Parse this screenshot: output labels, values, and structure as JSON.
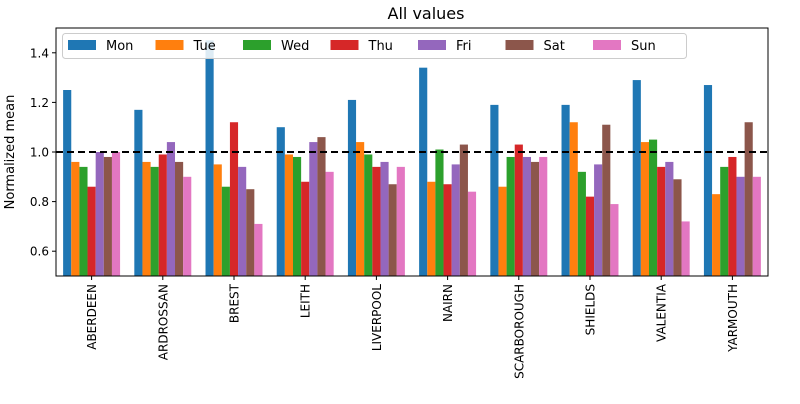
{
  "chart_data": {
    "type": "bar",
    "title": "All values",
    "xlabel": "",
    "ylabel": "Normalized mean",
    "ylim": [
      0.5,
      1.5
    ],
    "yticks": [
      0.6,
      0.8,
      1.0,
      1.2,
      1.4
    ],
    "ytick_labels": [
      "0.6",
      "0.8",
      "1.0",
      "1.2",
      "1.4"
    ],
    "reference_line": 1.0,
    "legend_position": "top",
    "categories": [
      "ABERDEEN",
      "ARDROSSAN",
      "BREST",
      "LEITH",
      "LIVERPOOL",
      "NAIRN",
      "SCARBOROUGH",
      "SHIELDS",
      "VALENTIA",
      "YARMOUTH"
    ],
    "series": [
      {
        "name": "Mon",
        "color": "#1f77b4",
        "values": [
          1.25,
          1.17,
          1.45,
          1.1,
          1.21,
          1.34,
          1.19,
          1.19,
          1.29,
          1.27
        ]
      },
      {
        "name": "Tue",
        "color": "#ff7f0e",
        "values": [
          0.96,
          0.96,
          0.95,
          0.99,
          1.04,
          0.88,
          0.86,
          1.12,
          1.04,
          0.83
        ]
      },
      {
        "name": "Wed",
        "color": "#2ca02c",
        "values": [
          0.94,
          0.94,
          0.86,
          0.98,
          0.99,
          1.01,
          0.98,
          0.92,
          1.05,
          0.94
        ]
      },
      {
        "name": "Thu",
        "color": "#d62728",
        "values": [
          0.86,
          0.99,
          1.12,
          0.88,
          0.94,
          0.87,
          1.03,
          0.82,
          0.94,
          0.98
        ]
      },
      {
        "name": "Fri",
        "color": "#9467bd",
        "values": [
          1.0,
          1.04,
          0.94,
          1.04,
          0.96,
          0.95,
          0.98,
          0.95,
          0.96,
          0.9
        ]
      },
      {
        "name": "Sat",
        "color": "#8c564b",
        "values": [
          0.98,
          0.96,
          0.85,
          1.06,
          0.87,
          1.03,
          0.96,
          1.11,
          0.89,
          1.12
        ]
      },
      {
        "name": "Sun",
        "color": "#e377c2",
        "values": [
          1.0,
          0.9,
          0.71,
          0.92,
          0.94,
          0.84,
          0.98,
          0.79,
          0.72,
          0.9
        ]
      }
    ]
  }
}
